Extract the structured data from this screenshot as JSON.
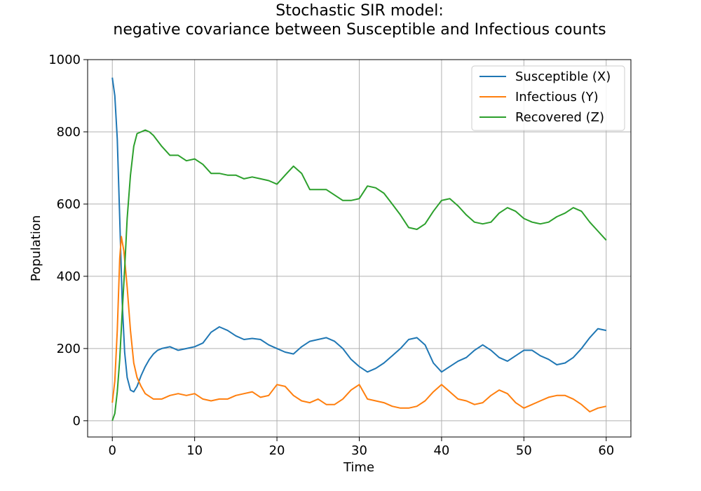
{
  "chart_data": {
    "type": "line",
    "title_line1": "Stochastic SIR model:",
    "title_line2": "negative covariance between Susceptible and Infectious counts",
    "xlabel": "Time",
    "ylabel": "Population",
    "xlim": [
      -3,
      63
    ],
    "ylim": [
      -45,
      1000
    ],
    "xticks": [
      0,
      10,
      20,
      30,
      40,
      50,
      60
    ],
    "yticks": [
      0,
      200,
      400,
      600,
      800,
      1000
    ],
    "grid": true,
    "legend_position": "top-right",
    "series": [
      {
        "name": "Susceptible (X)",
        "color": "#1f77b4",
        "points": [
          [
            0,
            950
          ],
          [
            0.3,
            900
          ],
          [
            0.6,
            780
          ],
          [
            0.9,
            560
          ],
          [
            1.2,
            330
          ],
          [
            1.5,
            190
          ],
          [
            1.8,
            120
          ],
          [
            2.2,
            85
          ],
          [
            2.6,
            80
          ],
          [
            3,
            95
          ],
          [
            3.5,
            125
          ],
          [
            4,
            150
          ],
          [
            4.5,
            170
          ],
          [
            5,
            185
          ],
          [
            5.5,
            195
          ],
          [
            6,
            200
          ],
          [
            7,
            205
          ],
          [
            8,
            195
          ],
          [
            9,
            200
          ],
          [
            10,
            205
          ],
          [
            11,
            215
          ],
          [
            12,
            245
          ],
          [
            13,
            260
          ],
          [
            14,
            250
          ],
          [
            15,
            235
          ],
          [
            16,
            225
          ],
          [
            17,
            228
          ],
          [
            18,
            225
          ],
          [
            19,
            210
          ],
          [
            20,
            200
          ],
          [
            21,
            190
          ],
          [
            22,
            185
          ],
          [
            23,
            205
          ],
          [
            24,
            220
          ],
          [
            25,
            225
          ],
          [
            26,
            230
          ],
          [
            27,
            220
          ],
          [
            28,
            200
          ],
          [
            29,
            170
          ],
          [
            30,
            150
          ],
          [
            31,
            135
          ],
          [
            32,
            145
          ],
          [
            33,
            160
          ],
          [
            34,
            180
          ],
          [
            35,
            200
          ],
          [
            36,
            225
          ],
          [
            37,
            230
          ],
          [
            38,
            210
          ],
          [
            39,
            160
          ],
          [
            40,
            135
          ],
          [
            41,
            150
          ],
          [
            42,
            165
          ],
          [
            43,
            175
          ],
          [
            44,
            195
          ],
          [
            45,
            210
          ],
          [
            46,
            195
          ],
          [
            47,
            175
          ],
          [
            48,
            165
          ],
          [
            49,
            180
          ],
          [
            50,
            195
          ],
          [
            51,
            195
          ],
          [
            52,
            180
          ],
          [
            53,
            170
          ],
          [
            54,
            155
          ],
          [
            55,
            160
          ],
          [
            56,
            175
          ],
          [
            57,
            200
          ],
          [
            58,
            230
          ],
          [
            59,
            255
          ],
          [
            60,
            250
          ]
        ]
      },
      {
        "name": "Infectious (Y)",
        "color": "#ff7f0e",
        "points": [
          [
            0,
            50
          ],
          [
            0.3,
            110
          ],
          [
            0.6,
            250
          ],
          [
            0.9,
            450
          ],
          [
            1.1,
            510
          ],
          [
            1.4,
            470
          ],
          [
            1.8,
            370
          ],
          [
            2.2,
            250
          ],
          [
            2.6,
            160
          ],
          [
            3,
            120
          ],
          [
            3.5,
            95
          ],
          [
            4,
            75
          ],
          [
            5,
            60
          ],
          [
            6,
            60
          ],
          [
            7,
            70
          ],
          [
            8,
            75
          ],
          [
            9,
            70
          ],
          [
            10,
            75
          ],
          [
            11,
            60
          ],
          [
            12,
            55
          ],
          [
            13,
            60
          ],
          [
            14,
            60
          ],
          [
            15,
            70
          ],
          [
            16,
            75
          ],
          [
            17,
            80
          ],
          [
            18,
            65
          ],
          [
            19,
            70
          ],
          [
            20,
            100
          ],
          [
            21,
            95
          ],
          [
            22,
            70
          ],
          [
            23,
            55
          ],
          [
            24,
            50
          ],
          [
            25,
            60
          ],
          [
            26,
            45
          ],
          [
            27,
            45
          ],
          [
            28,
            60
          ],
          [
            29,
            85
          ],
          [
            30,
            100
          ],
          [
            31,
            60
          ],
          [
            32,
            55
          ],
          [
            33,
            50
          ],
          [
            34,
            40
          ],
          [
            35,
            35
          ],
          [
            36,
            35
          ],
          [
            37,
            40
          ],
          [
            38,
            55
          ],
          [
            39,
            80
          ],
          [
            40,
            100
          ],
          [
            41,
            80
          ],
          [
            42,
            60
          ],
          [
            43,
            55
          ],
          [
            44,
            45
          ],
          [
            45,
            50
          ],
          [
            46,
            70
          ],
          [
            47,
            85
          ],
          [
            48,
            75
          ],
          [
            49,
            50
          ],
          [
            50,
            35
          ],
          [
            51,
            45
          ],
          [
            52,
            55
          ],
          [
            53,
            65
          ],
          [
            54,
            70
          ],
          [
            55,
            70
          ],
          [
            56,
            60
          ],
          [
            57,
            45
          ],
          [
            58,
            25
          ],
          [
            59,
            35
          ],
          [
            60,
            40
          ]
        ]
      },
      {
        "name": "Recovered (Z)",
        "color": "#2ca02c",
        "points": [
          [
            0,
            0
          ],
          [
            0.3,
            20
          ],
          [
            0.6,
            80
          ],
          [
            0.9,
            170
          ],
          [
            1.2,
            300
          ],
          [
            1.5,
            420
          ],
          [
            1.8,
            560
          ],
          [
            2.2,
            680
          ],
          [
            2.6,
            760
          ],
          [
            3,
            795
          ],
          [
            3.5,
            800
          ],
          [
            4,
            805
          ],
          [
            4.5,
            800
          ],
          [
            5,
            790
          ],
          [
            6,
            760
          ],
          [
            7,
            735
          ],
          [
            8,
            735
          ],
          [
            9,
            720
          ],
          [
            10,
            725
          ],
          [
            11,
            710
          ],
          [
            12,
            685
          ],
          [
            13,
            685
          ],
          [
            14,
            680
          ],
          [
            15,
            680
          ],
          [
            16,
            670
          ],
          [
            17,
            675
          ],
          [
            18,
            670
          ],
          [
            19,
            665
          ],
          [
            20,
            655
          ],
          [
            21,
            680
          ],
          [
            22,
            705
          ],
          [
            23,
            685
          ],
          [
            24,
            640
          ],
          [
            25,
            640
          ],
          [
            26,
            640
          ],
          [
            27,
            625
          ],
          [
            28,
            610
          ],
          [
            29,
            610
          ],
          [
            30,
            615
          ],
          [
            31,
            650
          ],
          [
            32,
            645
          ],
          [
            33,
            630
          ],
          [
            34,
            600
          ],
          [
            35,
            570
          ],
          [
            36,
            535
          ],
          [
            37,
            530
          ],
          [
            38,
            545
          ],
          [
            39,
            580
          ],
          [
            40,
            610
          ],
          [
            41,
            615
          ],
          [
            42,
            595
          ],
          [
            43,
            570
          ],
          [
            44,
            550
          ],
          [
            45,
            545
          ],
          [
            46,
            550
          ],
          [
            47,
            575
          ],
          [
            48,
            590
          ],
          [
            49,
            580
          ],
          [
            50,
            560
          ],
          [
            51,
            550
          ],
          [
            52,
            545
          ],
          [
            53,
            550
          ],
          [
            54,
            565
          ],
          [
            55,
            575
          ],
          [
            56,
            590
          ],
          [
            57,
            580
          ],
          [
            58,
            550
          ],
          [
            59,
            525
          ],
          [
            60,
            500
          ]
        ]
      }
    ]
  }
}
